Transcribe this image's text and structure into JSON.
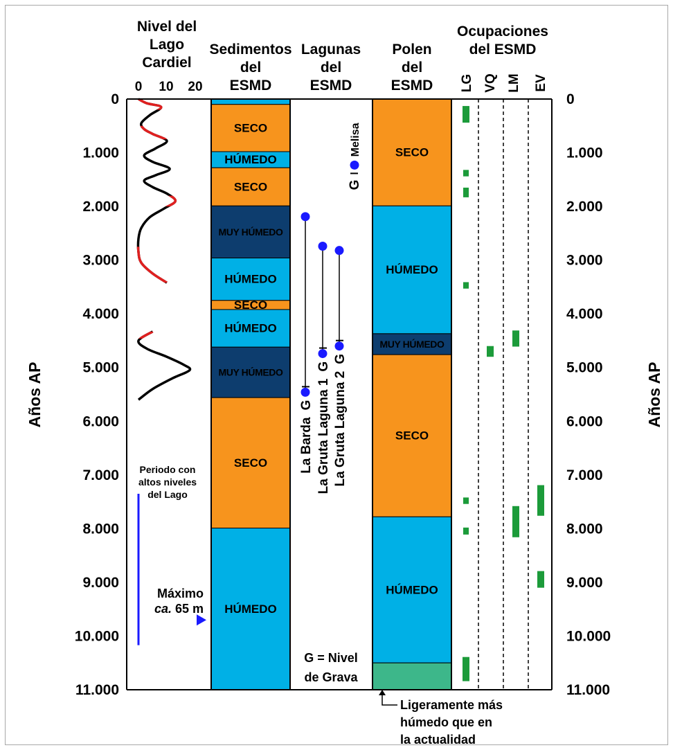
{
  "headers": {
    "lake": [
      "Nivel del",
      "Lago",
      "Cardiel"
    ],
    "sediments": [
      "Sedimentos",
      "del",
      "ESMD"
    ],
    "lagoons": [
      "Lagunas",
      "del",
      "ESMD"
    ],
    "pollen": [
      "Polen",
      "del",
      "ESMD"
    ],
    "occupations": [
      "Ocupaciones",
      "del ESMD"
    ]
  },
  "y_axis": {
    "label": "Años AP",
    "ticks": [
      "0",
      "1.000",
      "2.000",
      "3.000",
      "4.000",
      "5.000",
      "6.000",
      "7.000",
      "8.000",
      "9.000",
      "10.000",
      "11.000"
    ]
  },
  "lake_axis": {
    "ticks": [
      "0",
      "10",
      "20"
    ]
  },
  "occupation_columns": [
    "LG",
    "VQ",
    "LM",
    "EV"
  ],
  "colors": {
    "seco": "#f7941d",
    "humedo": "#00b0e6",
    "muy_humedo": "#0d3d6e",
    "ligeramente": "#3db78a",
    "occupation": "#1c9b3a",
    "lagoon_marker": "#1a1aff",
    "lake_low": "#e02020",
    "lake_high": "#000000"
  },
  "sediments": [
    {
      "from": 0,
      "to": 100,
      "type": "humedo",
      "label": ""
    },
    {
      "from": 100,
      "to": 980,
      "type": "seco",
      "label": "SECO"
    },
    {
      "from": 980,
      "to": 1280,
      "type": "humedo",
      "label": "HÚMEDO"
    },
    {
      "from": 1280,
      "to": 1990,
      "type": "seco",
      "label": "SECO"
    },
    {
      "from": 1990,
      "to": 2960,
      "type": "muy_humedo",
      "label": "MUY HÚMEDO"
    },
    {
      "from": 2960,
      "to": 3750,
      "type": "humedo",
      "label": "HÚMEDO"
    },
    {
      "from": 3750,
      "to": 3920,
      "type": "seco",
      "label": "SECO"
    },
    {
      "from": 3920,
      "to": 4620,
      "type": "humedo",
      "label": "HÚMEDO"
    },
    {
      "from": 4620,
      "to": 5560,
      "type": "muy_humedo",
      "label": "MUY HÚMEDO"
    },
    {
      "from": 5560,
      "to": 7990,
      "type": "seco",
      "label": "SECO"
    },
    {
      "from": 7990,
      "to": 11000,
      "type": "humedo",
      "label": "HÚMEDO"
    }
  ],
  "pollen": [
    {
      "from": 0,
      "to": 1990,
      "type": "seco",
      "label": "SECO"
    },
    {
      "from": 1990,
      "to": 4370,
      "type": "humedo",
      "label": "HÚMEDO"
    },
    {
      "from": 4370,
      "to": 4760,
      "type": "muy_humedo",
      "label": "MUY HÚMEDO"
    },
    {
      "from": 4760,
      "to": 7780,
      "type": "seco",
      "label": "SECO"
    },
    {
      "from": 7780,
      "to": 10500,
      "type": "humedo",
      "label": "HÚMEDO"
    },
    {
      "from": 10500,
      "to": 11000,
      "type": "ligeramente",
      "label": ""
    }
  ],
  "lagoons": [
    {
      "name": "La Barda",
      "top": 2190,
      "bottom": 5460,
      "gravel": "G"
    },
    {
      "name": "La Gruta Laguna 1",
      "top": 2740,
      "bottom": 4740,
      "gravel": "G"
    },
    {
      "name": "La Gruta Laguna 2",
      "top": 2820,
      "bottom": 4600,
      "gravel": "G"
    }
  ],
  "melisa": {
    "name": "Melisa",
    "date": 1230,
    "gravel": "G"
  },
  "gravel_legend": [
    "G = Nivel",
    "de Grava"
  ],
  "lake_level_curve": [
    {
      "age": 0,
      "level": 0
    },
    {
      "age": 80,
      "level": 3
    },
    {
      "age": 150,
      "level": 8
    },
    {
      "age": 300,
      "level": 4
    },
    {
      "age": 450,
      "level": 1
    },
    {
      "age": 560,
      "level": 2
    },
    {
      "age": 650,
      "level": 5
    },
    {
      "age": 780,
      "level": 10
    },
    {
      "age": 920,
      "level": 6
    },
    {
      "age": 1050,
      "level": 2
    },
    {
      "age": 1170,
      "level": 5
    },
    {
      "age": 1300,
      "level": 11
    },
    {
      "age": 1420,
      "level": 6
    },
    {
      "age": 1520,
      "level": 2
    },
    {
      "age": 1640,
      "level": 5
    },
    {
      "age": 1760,
      "level": 10
    },
    {
      "age": 1900,
      "level": 13
    },
    {
      "age": 2040,
      "level": 9
    },
    {
      "age": 2200,
      "level": 4
    },
    {
      "age": 2400,
      "level": 1
    },
    {
      "age": 2600,
      "level": 0
    },
    {
      "age": 2850,
      "level": 0
    },
    {
      "age": 3050,
      "level": 1
    },
    {
      "age": 3250,
      "level": 5
    },
    {
      "age": 3420,
      "level": 10
    },
    {
      "age": 4330,
      "level": 5
    },
    {
      "age": 4500,
      "level": 0
    },
    {
      "age": 4650,
      "level": 3
    },
    {
      "age": 4800,
      "level": 10
    },
    {
      "age": 4950,
      "level": 16
    },
    {
      "age": 5050,
      "level": 18
    },
    {
      "age": 5200,
      "level": 12
    },
    {
      "age": 5400,
      "level": 5
    },
    {
      "age": 5600,
      "level": 0
    }
  ],
  "lake_low_segments": [
    [
      0,
      200
    ],
    [
      500,
      750
    ],
    [
      1800,
      2000
    ],
    [
      2750,
      3420
    ],
    [
      4330,
      4460
    ]
  ],
  "high_lake_note": [
    "Periodo con",
    "altos niveles",
    "del Lago"
  ],
  "high_lake_period": {
    "from": 7350,
    "to": 10170
  },
  "maximum_note": {
    "line1": "Máximo",
    "line2_italic": "ca.",
    "line2_rest": " 65 m",
    "age": 9700
  },
  "occupations": [
    {
      "site": "LG",
      "from": 130,
      "to": 440
    },
    {
      "site": "LG",
      "from": 1320,
      "to": 1440
    },
    {
      "site": "LG",
      "from": 1650,
      "to": 1830
    },
    {
      "site": "LG",
      "from": 3410,
      "to": 3530
    },
    {
      "site": "LG",
      "from": 7420,
      "to": 7540
    },
    {
      "site": "LG",
      "from": 7980,
      "to": 8110
    },
    {
      "site": "LG",
      "from": 10390,
      "to": 10840
    },
    {
      "site": "VQ",
      "from": 4600,
      "to": 4800
    },
    {
      "site": "LM",
      "from": 4310,
      "to": 4610
    },
    {
      "site": "LM",
      "from": 7580,
      "to": 8160
    },
    {
      "site": "EV",
      "from": 7190,
      "to": 7760
    },
    {
      "site": "EV",
      "from": 8790,
      "to": 9100
    }
  ],
  "pollen_note": [
    "Ligeramente más",
    "húmedo que en",
    "la actualidad"
  ]
}
